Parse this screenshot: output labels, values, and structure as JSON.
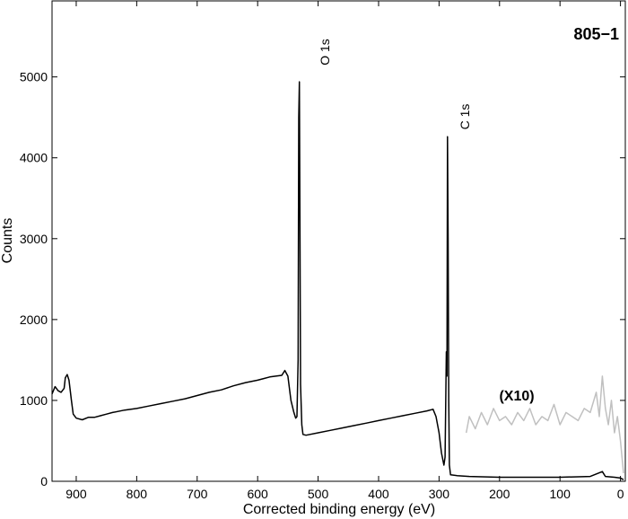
{
  "chart_data": {
    "type": "line",
    "title": "805−1",
    "x_label": "Corrected binding energy (eV)",
    "y_label": "Counts",
    "annotations": [
      "O 1s",
      "C 1s"
    ],
    "xlim": [
      940,
      -8
    ],
    "xticks": [
      900,
      800,
      700,
      600,
      500,
      400,
      300,
      200,
      100,
      0
    ],
    "ylim": [
      0,
      5940
    ],
    "yticks": [
      0,
      1000,
      2000,
      3000,
      4000,
      5000
    ],
    "x_reversed": true,
    "grid": false,
    "series": [
      {
        "color": "#000000",
        "x": [
          940,
          935,
          930,
          925,
          920,
          918,
          915,
          912,
          908,
          905,
          900,
          890,
          880,
          870,
          860,
          850,
          840,
          820,
          800,
          780,
          760,
          740,
          720,
          700,
          680,
          660,
          640,
          620,
          600,
          590,
          580,
          570,
          560,
          555,
          550,
          545,
          540,
          537,
          535,
          533,
          532,
          531,
          530,
          529,
          527,
          525,
          520,
          500,
          480,
          460,
          440,
          420,
          400,
          380,
          360,
          340,
          320,
          310,
          305,
          300,
          296,
          292,
          290,
          288,
          287,
          286,
          285,
          284,
          283,
          281,
          270,
          250,
          200,
          150,
          100,
          50,
          30,
          25,
          10,
          0,
          -5
        ],
        "values": [
          1080,
          1170,
          1120,
          1100,
          1150,
          1280,
          1320,
          1250,
          1000,
          830,
          780,
          760,
          790,
          790,
          810,
          830,
          850,
          880,
          900,
          930,
          960,
          990,
          1020,
          1060,
          1100,
          1130,
          1180,
          1220,
          1250,
          1270,
          1290,
          1300,
          1310,
          1370,
          1300,
          1000,
          850,
          780,
          800,
          1500,
          4500,
          4940,
          3000,
          1200,
          700,
          580,
          570,
          600,
          630,
          660,
          690,
          720,
          750,
          780,
          810,
          840,
          870,
          890,
          800,
          600,
          350,
          200,
          300,
          1600,
          1300,
          4260,
          3000,
          1000,
          200,
          80,
          70,
          60,
          50,
          50,
          50,
          60,
          120,
          60,
          50,
          40,
          20
        ]
      },
      {
        "name": "(X10)",
        "color": "#c0c0c0",
        "x": [
          255,
          250,
          240,
          230,
          220,
          210,
          200,
          190,
          180,
          170,
          160,
          150,
          140,
          130,
          120,
          110,
          100,
          90,
          80,
          70,
          60,
          50,
          40,
          35,
          30,
          25,
          20,
          15,
          10,
          5,
          0,
          -5
        ],
        "values": [
          600,
          800,
          650,
          850,
          700,
          900,
          750,
          800,
          700,
          850,
          750,
          900,
          700,
          800,
          750,
          950,
          700,
          850,
          800,
          750,
          900,
          850,
          1100,
          800,
          1300,
          900,
          700,
          1000,
          600,
          800,
          500,
          100
        ]
      }
    ]
  }
}
